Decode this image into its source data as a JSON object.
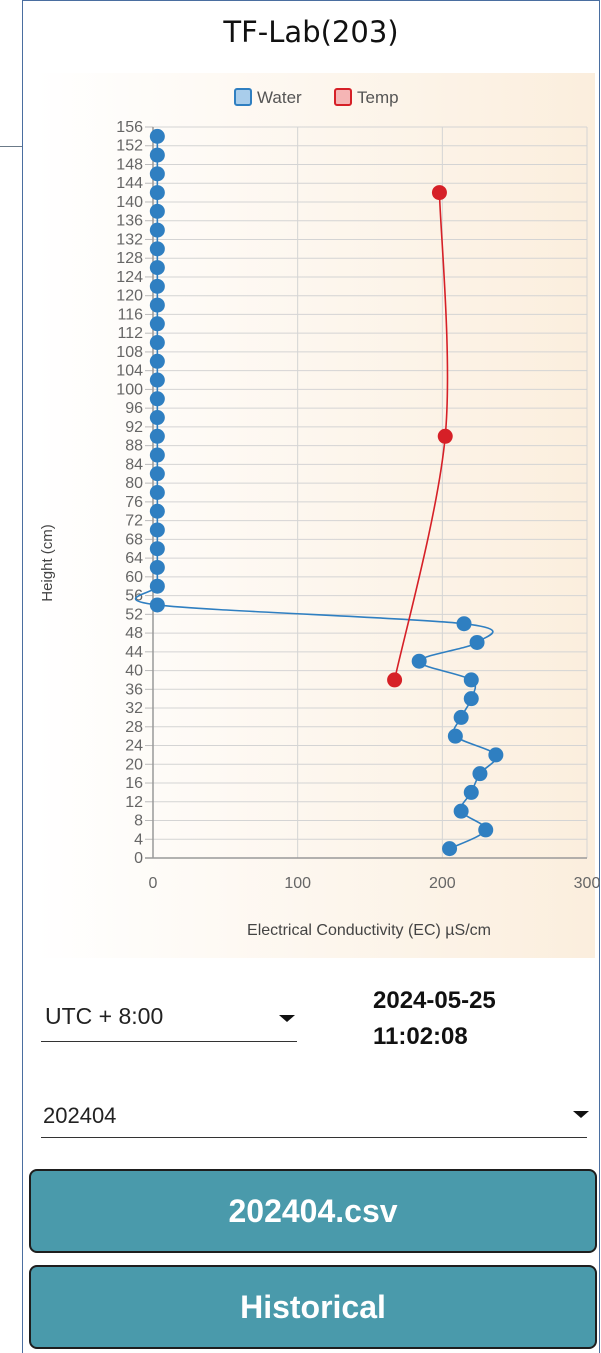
{
  "header": {
    "title": "TF-Lab(203)"
  },
  "controls": {
    "timezone": "UTC + 8:00",
    "date": "2024-05-25",
    "time": "11:02:08",
    "month": "202404",
    "download_label": "202404.csv",
    "historical_label": "Historical"
  },
  "colors": {
    "water": "#2f7fc1",
    "temp": "#d62027",
    "button": "#4a9aab"
  },
  "icons": {
    "timezone_caret": "caret-down-icon",
    "month_caret": "caret-down-icon"
  },
  "chart_data": {
    "type": "line",
    "orientation": "horizontal",
    "xlabel": "Electrical Conductivity (EC) µS/cm",
    "ylabel": "Height (cm)",
    "xlim": [
      0,
      300
    ],
    "ylim": [
      0,
      156
    ],
    "xticks": [
      0,
      100,
      200,
      300
    ],
    "yticks": [
      0,
      4,
      8,
      12,
      16,
      20,
      24,
      28,
      32,
      36,
      40,
      44,
      48,
      52,
      56,
      60,
      64,
      68,
      72,
      76,
      80,
      84,
      88,
      92,
      96,
      100,
      104,
      108,
      112,
      116,
      120,
      124,
      128,
      132,
      136,
      140,
      144,
      148,
      152,
      156
    ],
    "grid": true,
    "legend": "top-center",
    "series": [
      {
        "name": "Water",
        "color": "#2f7fc1",
        "points": [
          [
            205,
            2
          ],
          [
            230,
            6
          ],
          [
            213,
            10
          ],
          [
            220,
            14
          ],
          [
            226,
            18
          ],
          [
            237,
            22
          ],
          [
            209,
            26
          ],
          [
            213,
            30
          ],
          [
            220,
            34
          ],
          [
            220,
            38
          ],
          [
            184,
            42
          ],
          [
            224,
            46
          ],
          [
            215,
            50
          ],
          [
            3,
            54
          ],
          [
            3,
            58
          ],
          [
            3,
            62
          ],
          [
            3,
            66
          ],
          [
            3,
            70
          ],
          [
            3,
            74
          ],
          [
            3,
            78
          ],
          [
            3,
            82
          ],
          [
            3,
            86
          ],
          [
            3,
            90
          ],
          [
            3,
            94
          ],
          [
            3,
            98
          ],
          [
            3,
            102
          ],
          [
            3,
            106
          ],
          [
            3,
            110
          ],
          [
            3,
            114
          ],
          [
            3,
            118
          ],
          [
            3,
            122
          ],
          [
            3,
            126
          ],
          [
            3,
            130
          ],
          [
            3,
            134
          ],
          [
            3,
            138
          ],
          [
            3,
            142
          ],
          [
            3,
            146
          ],
          [
            3,
            150
          ],
          [
            3,
            154
          ]
        ]
      },
      {
        "name": "Temp",
        "color": "#d62027",
        "points": [
          [
            167,
            38
          ],
          [
            202,
            90
          ],
          [
            198,
            142
          ]
        ]
      }
    ]
  }
}
